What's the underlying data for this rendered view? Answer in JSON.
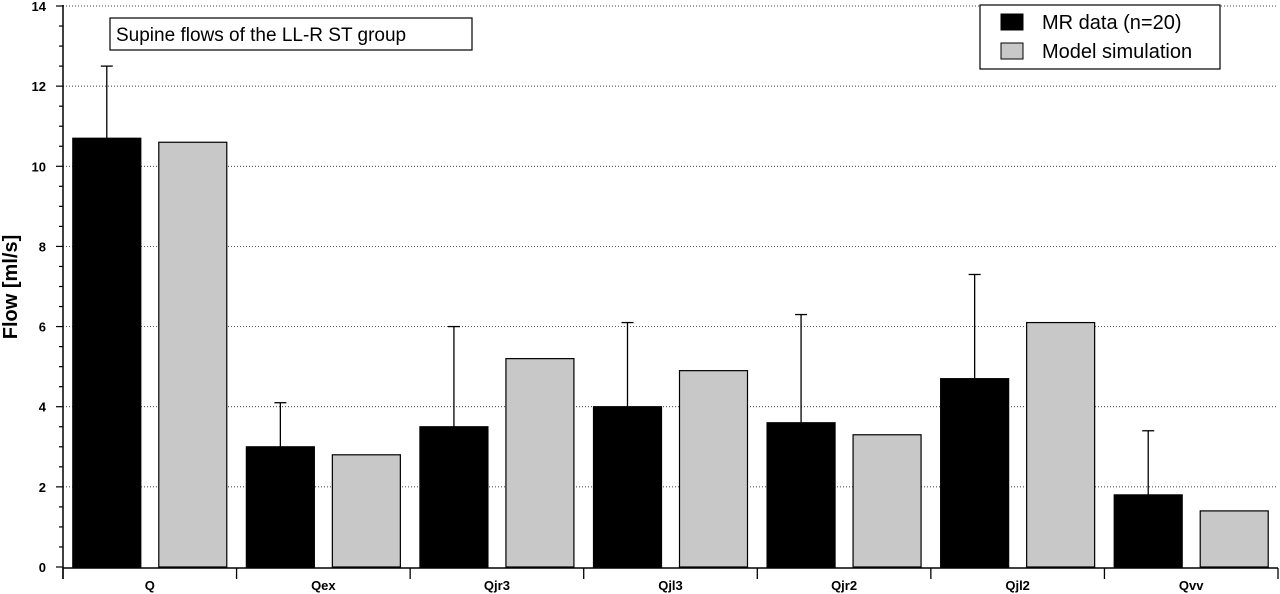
{
  "chart_data": {
    "type": "bar",
    "title": "Supine flows of the LL-R ST group",
    "ylabel": "Flow [ml/s]",
    "xlabel": "",
    "ylim": [
      0,
      14
    ],
    "yticks": [
      0,
      2,
      4,
      6,
      8,
      10,
      12,
      14
    ],
    "ytick_labels": [
      "0",
      "2",
      "4",
      "6",
      "8",
      "10",
      "12",
      "14"
    ],
    "categories": [
      "Q",
      "Qex",
      "Qjr3",
      "Qjl3",
      "Qjr2",
      "Qjl2",
      "Qvv"
    ],
    "series": [
      {
        "name": "MR data (n=20)",
        "color": "#000000",
        "values": [
          10.7,
          3.0,
          3.5,
          4.0,
          3.6,
          4.7,
          1.8
        ],
        "error_upper": [
          12.5,
          4.1,
          6.0,
          6.1,
          6.3,
          7.3,
          3.4
        ]
      },
      {
        "name": "Model simulation",
        "color": "#c8c8c8",
        "values": [
          10.6,
          2.8,
          5.2,
          4.9,
          3.3,
          6.1,
          1.4
        ]
      }
    ],
    "grid": "horizontal dotted",
    "legend_position": "top-right"
  }
}
